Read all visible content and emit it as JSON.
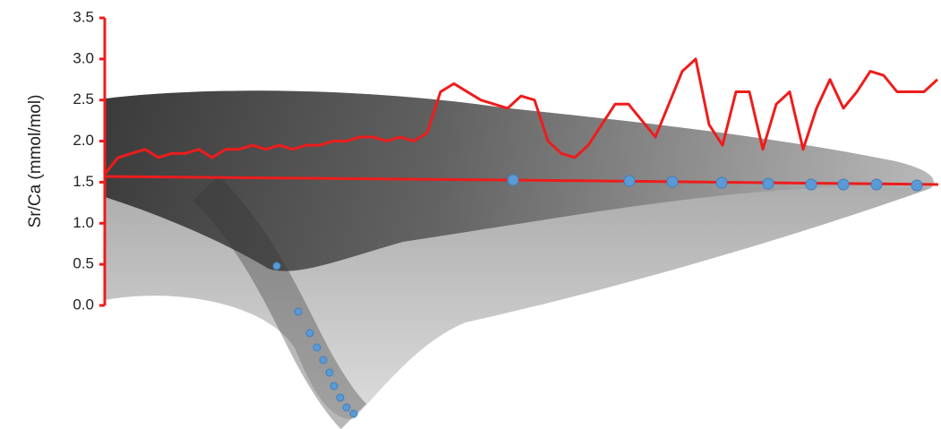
{
  "chart_data": {
    "type": "line",
    "y_label": "Sr/Ca (mmol/mol)",
    "categories": [
      null,
      null,
      null,
      null,
      null,
      null,
      null,
      null,
      null,
      null,
      null,
      null,
      null,
      null,
      null,
      null,
      null,
      null,
      null,
      null,
      null,
      null,
      null,
      null,
      null,
      null,
      null,
      null,
      null,
      null,
      null,
      null,
      null,
      null,
      null,
      null,
      null,
      null,
      null,
      null,
      null,
      null,
      null,
      null,
      null,
      null,
      null,
      null,
      null,
      null,
      null,
      null,
      null,
      null,
      null,
      null,
      null,
      null,
      null,
      null,
      null,
      null,
      null
    ],
    "series": [
      {
        "color": "#ee1c1c",
        "values": [
          1.6,
          1.8,
          1.85,
          1.9,
          1.8,
          1.85,
          1.85,
          1.9,
          1.8,
          1.9,
          1.9,
          1.95,
          1.9,
          1.95,
          1.9,
          1.95,
          1.95,
          2.0,
          2.0,
          2.05,
          2.05,
          2.0,
          2.05,
          2.0,
          2.1,
          2.6,
          2.7,
          2.6,
          2.5,
          2.45,
          2.4,
          2.55,
          2.5,
          2.0,
          1.85,
          1.8,
          1.95,
          2.2,
          2.45,
          2.45,
          2.25,
          2.05,
          2.45,
          2.85,
          3.0,
          2.2,
          1.95,
          2.6,
          2.6,
          1.9,
          2.45,
          2.6,
          1.9,
          2.4,
          2.75,
          2.4,
          2.6,
          2.85,
          2.8,
          2.6,
          2.6,
          2.6,
          2.75
        ]
      }
    ],
    "ylim": [
      0,
      3.5
    ],
    "yticks": [
      {
        "value": 0,
        "label": "0.0"
      },
      {
        "value": 0.5,
        "label": "0.5"
      },
      {
        "value": 1,
        "label": "1.0"
      },
      {
        "value": 1.5,
        "label": "1.5"
      },
      {
        "value": 2,
        "label": "2.0"
      },
      {
        "value": 2.5,
        "label": "2.5"
      },
      {
        "value": 3,
        "label": "3.0"
      },
      {
        "value": 3.5,
        "label": "3.5"
      }
    ],
    "axis_color": "#ee1c1c"
  }
}
